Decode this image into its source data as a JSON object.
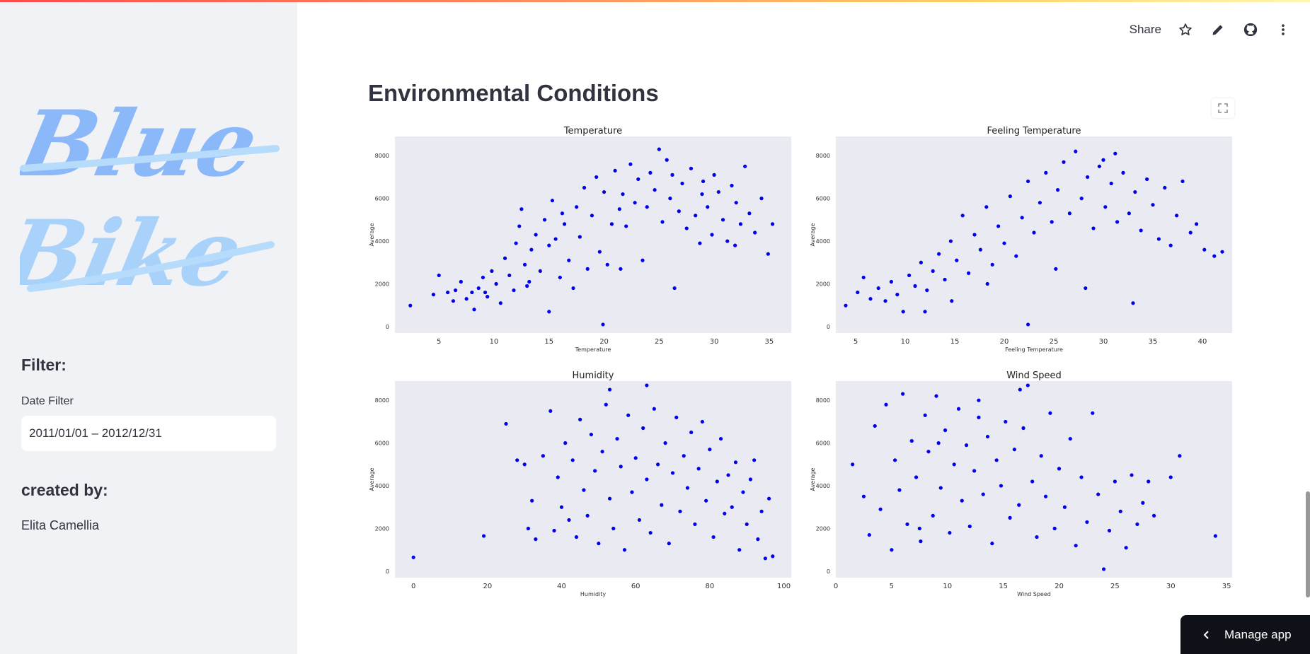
{
  "app": {
    "accent_bar": [
      "#ff4b4b",
      "#ffd36b"
    ]
  },
  "header": {
    "share_label": "Share",
    "icons": [
      "star-icon",
      "pencil-icon",
      "github-icon",
      "more-vertical-icon"
    ]
  },
  "sidebar": {
    "logo_text": [
      "Blue",
      "Bike"
    ],
    "filter_heading": "Filter:",
    "date_filter_label": "Date Filter",
    "date_filter_value": "2011/01/01 – 2012/12/31",
    "created_heading": "created by:",
    "author": "Elita Camellia"
  },
  "main": {
    "title": "Environmental Conditions"
  },
  "manage_app_label": "Manage app",
  "chart_data": [
    {
      "type": "scatter",
      "title": "Temperature",
      "xlabel": "Temperature",
      "ylabel": "Average",
      "xlim": [
        1,
        37
      ],
      "ylim": [
        -300,
        8900
      ],
      "xticks": [
        5,
        10,
        15,
        20,
        25,
        30,
        35
      ],
      "yticks": [
        0,
        2000,
        4000,
        6000,
        8000
      ],
      "color": "#0000ee",
      "points": [
        [
          2.4,
          985
        ],
        [
          4.5,
          1500
        ],
        [
          5,
          2400
        ],
        [
          5.8,
          1600
        ],
        [
          6.3,
          1200
        ],
        [
          6.5,
          1700
        ],
        [
          7,
          2100
        ],
        [
          7.5,
          1300
        ],
        [
          8,
          1600
        ],
        [
          8.2,
          800
        ],
        [
          8.6,
          1800
        ],
        [
          9,
          2300
        ],
        [
          9.4,
          1400
        ],
        [
          9.8,
          2600
        ],
        [
          10.2,
          2000
        ],
        [
          10.6,
          1100
        ],
        [
          11,
          3200
        ],
        [
          11.4,
          2400
        ],
        [
          11.8,
          1700
        ],
        [
          12,
          3900
        ],
        [
          12.3,
          4700
        ],
        [
          12.5,
          5500
        ],
        [
          12.8,
          2900
        ],
        [
          13,
          1900
        ],
        [
          13.4,
          3600
        ],
        [
          13.8,
          4300
        ],
        [
          14.2,
          2600
        ],
        [
          14.6,
          5000
        ],
        [
          15,
          3800
        ],
        [
          15,
          700
        ],
        [
          15.3,
          5900
        ],
        [
          15.6,
          4100
        ],
        [
          16,
          2300
        ],
        [
          16.4,
          4800
        ],
        [
          16.8,
          3100
        ],
        [
          17.2,
          1800
        ],
        [
          17.5,
          5600
        ],
        [
          17.8,
          4200
        ],
        [
          18.2,
          6500
        ],
        [
          18.5,
          2700
        ],
        [
          18.9,
          5200
        ],
        [
          19.3,
          7000
        ],
        [
          19.6,
          3500
        ],
        [
          20,
          6300
        ],
        [
          20.3,
          2900
        ],
        [
          20.7,
          4800
        ],
        [
          21,
          7300
        ],
        [
          21.4,
          5500
        ],
        [
          21.7,
          6200
        ],
        [
          22,
          4700
        ],
        [
          22.4,
          7600
        ],
        [
          22.8,
          5800
        ],
        [
          23.1,
          6900
        ],
        [
          23.5,
          3100
        ],
        [
          23.9,
          5600
        ],
        [
          24.2,
          7200
        ],
        [
          24.6,
          6400
        ],
        [
          25,
          8300
        ],
        [
          25.3,
          4900
        ],
        [
          25.7,
          7800
        ],
        [
          26,
          6000
        ],
        [
          26.4,
          1800
        ],
        [
          26.8,
          5400
        ],
        [
          27.1,
          6700
        ],
        [
          27.5,
          4600
        ],
        [
          27.9,
          7400
        ],
        [
          28.3,
          5200
        ],
        [
          28.7,
          3900
        ],
        [
          29,
          6800
        ],
        [
          29.4,
          5600
        ],
        [
          29.8,
          4300
        ],
        [
          30,
          7100
        ],
        [
          30.4,
          6300
        ],
        [
          30.8,
          5000
        ],
        [
          31.2,
          4000
        ],
        [
          31.6,
          6600
        ],
        [
          32,
          5800
        ],
        [
          32.4,
          4800
        ],
        [
          32.8,
          7500
        ],
        [
          33.2,
          5300
        ],
        [
          33.7,
          4400
        ],
        [
          34.3,
          6000
        ],
        [
          34.9,
          3400
        ],
        [
          35.3,
          4800
        ],
        [
          19.9,
          100
        ],
        [
          21.5,
          2700
        ],
        [
          16.2,
          5300
        ],
        [
          13.2,
          2100
        ],
        [
          9.2,
          1600
        ],
        [
          26.2,
          7100
        ],
        [
          28.9,
          6200
        ],
        [
          31.9,
          3800
        ]
      ]
    },
    {
      "type": "scatter",
      "title": "Feeling Temperature",
      "xlabel": "Feeling Temperature",
      "ylabel": "Average",
      "xlim": [
        3,
        43
      ],
      "ylim": [
        -300,
        8900
      ],
      "xticks": [
        5,
        10,
        15,
        20,
        25,
        30,
        35,
        40
      ],
      "yticks": [
        0,
        2000,
        4000,
        6000,
        8000
      ],
      "color": "#0000ee",
      "points": [
        [
          4,
          985
        ],
        [
          5.2,
          1600
        ],
        [
          5.8,
          2300
        ],
        [
          6.5,
          1300
        ],
        [
          7.3,
          1800
        ],
        [
          8,
          1200
        ],
        [
          8.6,
          2100
        ],
        [
          9.2,
          1500
        ],
        [
          9.8,
          700
        ],
        [
          10.4,
          2400
        ],
        [
          11,
          1900
        ],
        [
          11.6,
          3000
        ],
        [
          12.2,
          1700
        ],
        [
          12.8,
          2600
        ],
        [
          13.4,
          3400
        ],
        [
          14,
          2200
        ],
        [
          14.6,
          4000
        ],
        [
          15.2,
          3100
        ],
        [
          15.8,
          5200
        ],
        [
          16.4,
          2500
        ],
        [
          17,
          4300
        ],
        [
          17.6,
          3600
        ],
        [
          18.2,
          5600
        ],
        [
          18.8,
          2900
        ],
        [
          19.4,
          4700
        ],
        [
          20,
          3900
        ],
        [
          20.6,
          6100
        ],
        [
          21.2,
          3300
        ],
        [
          21.8,
          5100
        ],
        [
          22.4,
          6800
        ],
        [
          23,
          4400
        ],
        [
          23.6,
          5800
        ],
        [
          24.2,
          7200
        ],
        [
          24.8,
          4900
        ],
        [
          25.4,
          6400
        ],
        [
          26,
          7700
        ],
        [
          26.6,
          5300
        ],
        [
          27.2,
          8200
        ],
        [
          27.8,
          6000
        ],
        [
          28.4,
          7000
        ],
        [
          29,
          4600
        ],
        [
          29.6,
          7500
        ],
        [
          30.2,
          5600
        ],
        [
          30.8,
          6700
        ],
        [
          31.4,
          4900
        ],
        [
          32,
          7200
        ],
        [
          32.6,
          5300
        ],
        [
          33.2,
          6300
        ],
        [
          33.8,
          4500
        ],
        [
          34.4,
          6900
        ],
        [
          35,
          5700
        ],
        [
          35.6,
          4100
        ],
        [
          36.2,
          6500
        ],
        [
          36.8,
          3800
        ],
        [
          37.4,
          5200
        ],
        [
          38,
          6800
        ],
        [
          38.8,
          4400
        ],
        [
          39.4,
          4800
        ],
        [
          40.2,
          3600
        ],
        [
          41.2,
          3300
        ],
        [
          42,
          3500
        ],
        [
          22.4,
          100
        ],
        [
          33,
          1100
        ],
        [
          28.2,
          1800
        ],
        [
          18.3,
          2000
        ],
        [
          25.2,
          2700
        ],
        [
          14.7,
          1200
        ],
        [
          12,
          700
        ],
        [
          31.2,
          8100
        ],
        [
          30,
          7800
        ]
      ]
    },
    {
      "type": "scatter",
      "title": "Humidity",
      "xlabel": "Humidity",
      "ylabel": "Average",
      "xlim": [
        -5,
        102
      ],
      "ylim": [
        -300,
        8900
      ],
      "xticks": [
        0,
        20,
        40,
        60,
        80,
        100
      ],
      "yticks": [
        0,
        2000,
        4000,
        6000,
        8000
      ],
      "color": "#0000ee",
      "points": [
        [
          0,
          650
        ],
        [
          19,
          1650
        ],
        [
          25,
          6900
        ],
        [
          28,
          5200
        ],
        [
          30,
          5000
        ],
        [
          31,
          2000
        ],
        [
          32,
          3300
        ],
        [
          33,
          1500
        ],
        [
          35,
          5400
        ],
        [
          37,
          7500
        ],
        [
          38,
          1900
        ],
        [
          39,
          4400
        ],
        [
          40,
          3000
        ],
        [
          41,
          6000
        ],
        [
          42,
          2400
        ],
        [
          43,
          5200
        ],
        [
          44,
          1600
        ],
        [
          45,
          7100
        ],
        [
          46,
          3800
        ],
        [
          47,
          2600
        ],
        [
          48,
          6400
        ],
        [
          49,
          4700
        ],
        [
          50,
          1300
        ],
        [
          51,
          5600
        ],
        [
          52,
          7800
        ],
        [
          53,
          3400
        ],
        [
          54,
          2000
        ],
        [
          55,
          6200
        ],
        [
          56,
          4900
        ],
        [
          57,
          1000
        ],
        [
          58,
          7300
        ],
        [
          59,
          3700
        ],
        [
          60,
          5300
        ],
        [
          61,
          2400
        ],
        [
          62,
          6700
        ],
        [
          63,
          4300
        ],
        [
          64,
          1800
        ],
        [
          65,
          7600
        ],
        [
          66,
          5000
        ],
        [
          67,
          3100
        ],
        [
          68,
          6000
        ],
        [
          69,
          1300
        ],
        [
          70,
          4600
        ],
        [
          71,
          7200
        ],
        [
          72,
          2800
        ],
        [
          73,
          5400
        ],
        [
          74,
          3900
        ],
        [
          75,
          6500
        ],
        [
          76,
          2200
        ],
        [
          77,
          4800
        ],
        [
          78,
          7000
        ],
        [
          79,
          3300
        ],
        [
          80,
          5700
        ],
        [
          81,
          1600
        ],
        [
          82,
          4200
        ],
        [
          83,
          6200
        ],
        [
          84,
          2700
        ],
        [
          85,
          4500
        ],
        [
          86,
          3000
        ],
        [
          87,
          5100
        ],
        [
          88,
          1000
        ],
        [
          89,
          3700
        ],
        [
          90,
          2200
        ],
        [
          91,
          4300
        ],
        [
          92,
          5200
        ],
        [
          93,
          1500
        ],
        [
          94,
          2800
        ],
        [
          95,
          600
        ],
        [
          96,
          3400
        ],
        [
          97,
          700
        ],
        [
          63,
          8700
        ],
        [
          53,
          8500
        ]
      ]
    },
    {
      "type": "scatter",
      "title": "Wind Speed",
      "xlabel": "Wind Speed",
      "ylabel": "Average",
      "xlim": [
        0,
        35.5
      ],
      "ylim": [
        -300,
        8900
      ],
      "xticks": [
        0,
        5,
        10,
        15,
        20,
        25,
        30,
        35
      ],
      "yticks": [
        0,
        2000,
        4000,
        6000,
        8000
      ],
      "color": "#0000ee",
      "points": [
        [
          1.5,
          5000
        ],
        [
          2.5,
          3500
        ],
        [
          3,
          1700
        ],
        [
          3.5,
          6800
        ],
        [
          4,
          2900
        ],
        [
          4.5,
          7800
        ],
        [
          5,
          1000
        ],
        [
          5.3,
          5200
        ],
        [
          5.7,
          3800
        ],
        [
          6,
          8300
        ],
        [
          6.4,
          2200
        ],
        [
          6.8,
          6100
        ],
        [
          7.2,
          4400
        ],
        [
          7.6,
          1400
        ],
        [
          8,
          7300
        ],
        [
          8.3,
          5600
        ],
        [
          8.7,
          2600
        ],
        [
          9,
          8200
        ],
        [
          9.4,
          3900
        ],
        [
          9.8,
          6600
        ],
        [
          10.2,
          1800
        ],
        [
          10.6,
          5000
        ],
        [
          11,
          7600
        ],
        [
          11.3,
          3300
        ],
        [
          11.7,
          5900
        ],
        [
          12,
          2100
        ],
        [
          12.4,
          4700
        ],
        [
          12.8,
          8000
        ],
        [
          13.2,
          3600
        ],
        [
          13.6,
          6300
        ],
        [
          14,
          1300
        ],
        [
          14.4,
          5200
        ],
        [
          14.8,
          4000
        ],
        [
          15.2,
          7000
        ],
        [
          15.6,
          2500
        ],
        [
          16,
          5700
        ],
        [
          16.4,
          3100
        ],
        [
          16.8,
          6700
        ],
        [
          17.2,
          8700
        ],
        [
          17.6,
          4200
        ],
        [
          18,
          1600
        ],
        [
          18.4,
          5400
        ],
        [
          18.8,
          3500
        ],
        [
          19.2,
          7400
        ],
        [
          19.6,
          2000
        ],
        [
          20,
          4800
        ],
        [
          20.5,
          3000
        ],
        [
          21,
          6200
        ],
        [
          21.5,
          1200
        ],
        [
          22,
          4400
        ],
        [
          22.5,
          2300
        ],
        [
          23,
          7400
        ],
        [
          23.5,
          3600
        ],
        [
          24,
          100
        ],
        [
          24.5,
          1900
        ],
        [
          25,
          4200
        ],
        [
          25.5,
          2800
        ],
        [
          26,
          1100
        ],
        [
          26.5,
          4500
        ],
        [
          27,
          2200
        ],
        [
          27.5,
          3200
        ],
        [
          28,
          4200
        ],
        [
          28.5,
          2600
        ],
        [
          30,
          4400
        ],
        [
          30.8,
          5400
        ],
        [
          34,
          1650
        ],
        [
          16.5,
          8500
        ],
        [
          12.8,
          7200
        ],
        [
          9.2,
          6000
        ],
        [
          7.5,
          2000
        ]
      ]
    }
  ]
}
